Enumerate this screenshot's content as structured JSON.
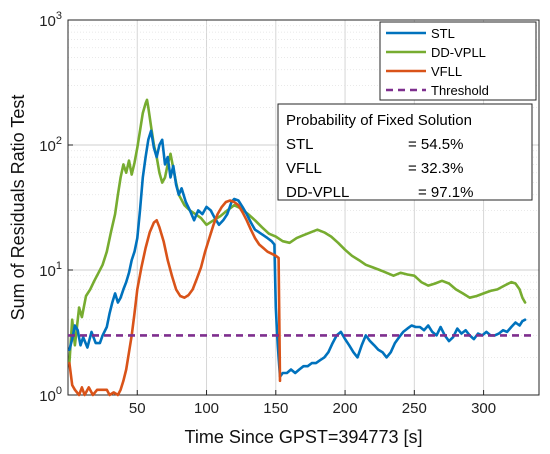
{
  "chart_data": {
    "type": "line",
    "xlabel": "Time Since GPST=394773 [s]",
    "ylabel": "Sum of Residuals Ratio Test",
    "xlim": [
      0,
      340
    ],
    "ylim": [
      1,
      1000
    ],
    "y_scale": "log",
    "grid": true,
    "x_ticks": [
      50,
      100,
      150,
      200,
      250,
      300
    ],
    "x_tick_labels": [
      "50",
      "100",
      "150",
      "200",
      "250",
      "300"
    ],
    "y_ticks": [
      1,
      10,
      100,
      1000
    ],
    "y_tick_labels": [
      {
        "base": "10",
        "exp": "0"
      },
      {
        "base": "10",
        "exp": "1"
      },
      {
        "base": "10",
        "exp": "2"
      },
      {
        "base": "10",
        "exp": "3"
      }
    ],
    "legend_position": "top-right",
    "legend": [
      {
        "name": "STL",
        "color": "#0072BD",
        "style": "solid"
      },
      {
        "name": "DD-VPLL",
        "color": "#77AC30",
        "style": "solid"
      },
      {
        "name": "VFLL",
        "color": "#D95319",
        "style": "solid"
      },
      {
        "name": "Threshold",
        "color": "#7E2F8E",
        "style": "dashed"
      }
    ],
    "annotation": {
      "title": "Probability of Fixed Solution",
      "rows": [
        {
          "label": "STL",
          "value": "= 54.5%"
        },
        {
          "label": "VFLL",
          "value": "= 32.3%"
        },
        {
          "label": "DD-VPLL",
          "value": "= 97.1%"
        }
      ]
    },
    "series": [
      {
        "name": "DD-VPLL",
        "color": "#77AC30",
        "points": [
          [
            1,
            1.8
          ],
          [
            3,
            4.0
          ],
          [
            5,
            2.5
          ],
          [
            8,
            5.0
          ],
          [
            10,
            4.2
          ],
          [
            13,
            6.2
          ],
          [
            16,
            7.0
          ],
          [
            19,
            8.2
          ],
          [
            22,
            9.5
          ],
          [
            25,
            11.0
          ],
          [
            28,
            14.0
          ],
          [
            31,
            20.0
          ],
          [
            34,
            28.0
          ],
          [
            36,
            40.0
          ],
          [
            38,
            55.0
          ],
          [
            40,
            70.0
          ],
          [
            42,
            60.0
          ],
          [
            44,
            75.0
          ],
          [
            46,
            58.0
          ],
          [
            48,
            72.0
          ],
          [
            50,
            95.0
          ],
          [
            52,
            130.0
          ],
          [
            54,
            180.0
          ],
          [
            56,
            215.0
          ],
          [
            57,
            230.0
          ],
          [
            58,
            200.0
          ],
          [
            60,
            140.0
          ],
          [
            62,
            100.0
          ],
          [
            64,
            80.0
          ],
          [
            66,
            60.0
          ],
          [
            68,
            50.0
          ],
          [
            70,
            55.0
          ],
          [
            72,
            70.0
          ],
          [
            74,
            85.0
          ],
          [
            76,
            65.0
          ],
          [
            78,
            50.0
          ],
          [
            80,
            40.0
          ],
          [
            84,
            33.0
          ],
          [
            88,
            30.0
          ],
          [
            92,
            28.0
          ],
          [
            96,
            26.0
          ],
          [
            100,
            23.0
          ],
          [
            105,
            25.0
          ],
          [
            110,
            27.0
          ],
          [
            115,
            30.0
          ],
          [
            120,
            33.0
          ],
          [
            125,
            31.0
          ],
          [
            130,
            28.0
          ],
          [
            135,
            25.0
          ],
          [
            140,
            22.0
          ],
          [
            145,
            19.5
          ],
          [
            150,
            18.5
          ],
          [
            155,
            17.0
          ],
          [
            160,
            16.5
          ],
          [
            165,
            18.0
          ],
          [
            170,
            19.0
          ],
          [
            175,
            20.0
          ],
          [
            180,
            21.0
          ],
          [
            185,
            20.0
          ],
          [
            190,
            18.5
          ],
          [
            195,
            16.5
          ],
          [
            200,
            14.5
          ],
          [
            205,
            13.0
          ],
          [
            210,
            12.0
          ],
          [
            215,
            11.0
          ],
          [
            220,
            10.5
          ],
          [
            225,
            10.0
          ],
          [
            230,
            9.5
          ],
          [
            235,
            9.0
          ],
          [
            240,
            9.5
          ],
          [
            245,
            9.2
          ],
          [
            250,
            9.0
          ],
          [
            255,
            8.0
          ],
          [
            260,
            7.5
          ],
          [
            265,
            7.8
          ],
          [
            270,
            8.2
          ],
          [
            275,
            7.8
          ],
          [
            280,
            7.0
          ],
          [
            285,
            6.5
          ],
          [
            290,
            6.0
          ],
          [
            295,
            6.2
          ],
          [
            300,
            6.5
          ],
          [
            305,
            6.8
          ],
          [
            310,
            7.0
          ],
          [
            315,
            7.5
          ],
          [
            320,
            8.0
          ],
          [
            323,
            7.8
          ],
          [
            326,
            7.0
          ],
          [
            328,
            6.0
          ],
          [
            330,
            5.5
          ]
        ]
      },
      {
        "name": "STL",
        "color": "#0072BD",
        "points": [
          [
            1,
            2.3
          ],
          [
            3,
            2.8
          ],
          [
            5,
            3.6
          ],
          [
            7,
            3.3
          ],
          [
            9,
            2.5
          ],
          [
            11,
            2.9
          ],
          [
            14,
            2.4
          ],
          [
            17,
            3.2
          ],
          [
            20,
            2.6
          ],
          [
            23,
            2.6
          ],
          [
            25,
            3.0
          ],
          [
            28,
            3.5
          ],
          [
            30,
            4.5
          ],
          [
            32,
            5.5
          ],
          [
            34,
            6.5
          ],
          [
            36,
            5.5
          ],
          [
            38,
            6.0
          ],
          [
            40,
            7.0
          ],
          [
            42,
            8.0
          ],
          [
            44,
            9.5
          ],
          [
            46,
            12.0
          ],
          [
            48,
            14.0
          ],
          [
            50,
            18.0
          ],
          [
            52,
            30.0
          ],
          [
            54,
            55.0
          ],
          [
            56,
            80.0
          ],
          [
            58,
            110.0
          ],
          [
            60,
            130.0
          ],
          [
            62,
            95.0
          ],
          [
            64,
            80.0
          ],
          [
            66,
            100.0
          ],
          [
            68,
            110.0
          ],
          [
            70,
            70.0
          ],
          [
            72,
            80.0
          ],
          [
            74,
            55.0
          ],
          [
            76,
            68.0
          ],
          [
            78,
            48.0
          ],
          [
            80,
            40.0
          ],
          [
            82,
            45.0
          ],
          [
            85,
            35.0
          ],
          [
            88,
            30.0
          ],
          [
            91,
            25.0
          ],
          [
            94,
            30.0
          ],
          [
            97,
            28.0
          ],
          [
            100,
            32.0
          ],
          [
            103,
            30.0
          ],
          [
            106,
            26.0
          ],
          [
            109,
            23.0
          ],
          [
            112,
            25.0
          ],
          [
            115,
            28.0
          ],
          [
            118,
            35.0
          ],
          [
            120,
            37.0
          ],
          [
            123,
            36.0
          ],
          [
            126,
            32.0
          ],
          [
            129,
            28.0
          ],
          [
            132,
            24.0
          ],
          [
            135,
            21.0
          ],
          [
            138,
            20.0
          ],
          [
            141,
            19.0
          ],
          [
            144,
            18.0
          ],
          [
            147,
            17.0
          ],
          [
            149,
            16.0
          ],
          [
            150,
            5.0
          ],
          [
            151,
            3.0
          ],
          [
            152,
            2.0
          ],
          [
            153,
            1.4
          ],
          [
            155,
            1.5
          ],
          [
            158,
            1.5
          ],
          [
            161,
            1.6
          ],
          [
            164,
            1.5
          ],
          [
            167,
            1.6
          ],
          [
            170,
            1.7
          ],
          [
            173,
            1.7
          ],
          [
            176,
            1.8
          ],
          [
            179,
            1.8
          ],
          [
            182,
            1.9
          ],
          [
            185,
            2.0
          ],
          [
            188,
            2.2
          ],
          [
            191,
            2.6
          ],
          [
            194,
            3.0
          ],
          [
            197,
            3.2
          ],
          [
            200,
            2.8
          ],
          [
            203,
            2.5
          ],
          [
            206,
            2.2
          ],
          [
            209,
            2.0
          ],
          [
            212,
            2.5
          ],
          [
            215,
            3.0
          ],
          [
            218,
            2.7
          ],
          [
            221,
            2.5
          ],
          [
            224,
            2.3
          ],
          [
            227,
            2.2
          ],
          [
            230,
            2.0
          ],
          [
            233,
            2.2
          ],
          [
            236,
            2.6
          ],
          [
            239,
            2.9
          ],
          [
            242,
            3.2
          ],
          [
            245,
            3.4
          ],
          [
            248,
            3.6
          ],
          [
            251,
            3.5
          ],
          [
            254,
            3.5
          ],
          [
            257,
            3.3
          ],
          [
            260,
            3.6
          ],
          [
            263,
            3.2
          ],
          [
            266,
            3.0
          ],
          [
            269,
            3.5
          ],
          [
            272,
            3.0
          ],
          [
            275,
            2.7
          ],
          [
            278,
            2.9
          ],
          [
            281,
            3.4
          ],
          [
            284,
            3.1
          ],
          [
            287,
            3.3
          ],
          [
            290,
            3.0
          ],
          [
            293,
            2.8
          ],
          [
            296,
            3.1
          ],
          [
            299,
            3.0
          ],
          [
            302,
            3.2
          ],
          [
            305,
            3.0
          ],
          [
            308,
            3.0
          ],
          [
            311,
            3.1
          ],
          [
            314,
            3.3
          ],
          [
            317,
            3.2
          ],
          [
            320,
            3.5
          ],
          [
            323,
            3.8
          ],
          [
            326,
            3.6
          ],
          [
            328,
            3.9
          ],
          [
            330,
            4.0
          ]
        ]
      },
      {
        "name": "VFLL",
        "color": "#D95319",
        "points": [
          [
            1,
            1.8
          ],
          [
            3,
            1.2
          ],
          [
            5,
            1.1
          ],
          [
            8,
            1.0
          ],
          [
            10,
            1.15
          ],
          [
            12,
            1.0
          ],
          [
            15,
            1.15
          ],
          [
            18,
            1.0
          ],
          [
            21,
            1.1
          ],
          [
            25,
            1.1
          ],
          [
            28,
            1.1
          ],
          [
            30,
            1.0
          ],
          [
            33,
            1.05
          ],
          [
            36,
            1.0
          ],
          [
            38,
            1.1
          ],
          [
            40,
            1.3
          ],
          [
            42,
            1.6
          ],
          [
            44,
            2.2
          ],
          [
            46,
            3.0
          ],
          [
            48,
            4.5
          ],
          [
            50,
            7.0
          ],
          [
            53,
            10.5
          ],
          [
            56,
            15.0
          ],
          [
            59,
            20.0
          ],
          [
            62,
            24.0
          ],
          [
            64,
            25.0
          ],
          [
            66,
            22.0
          ],
          [
            69,
            17.0
          ],
          [
            72,
            12.0
          ],
          [
            75,
            9.0
          ],
          [
            78,
            7.0
          ],
          [
            81,
            6.2
          ],
          [
            84,
            6.0
          ],
          [
            87,
            6.3
          ],
          [
            90,
            7.0
          ],
          [
            93,
            8.5
          ],
          [
            96,
            10.5
          ],
          [
            99,
            14.0
          ],
          [
            102,
            18.0
          ],
          [
            105,
            23.0
          ],
          [
            108,
            28.0
          ],
          [
            111,
            32.0
          ],
          [
            114,
            35.0
          ],
          [
            117,
            36.0
          ],
          [
            120,
            35.0
          ],
          [
            123,
            33.0
          ],
          [
            126,
            29.0
          ],
          [
            129,
            25.0
          ],
          [
            132,
            21.0
          ],
          [
            135,
            18.0
          ],
          [
            138,
            16.0
          ],
          [
            141,
            15.0
          ],
          [
            144,
            14.0
          ],
          [
            147,
            13.5
          ],
          [
            150,
            13.0
          ],
          [
            152,
            12.5
          ],
          [
            153,
            1.3
          ]
        ]
      },
      {
        "name": "Threshold",
        "color": "#7E2F8E",
        "dashed": true,
        "points": [
          [
            0,
            3.0
          ],
          [
            335,
            3.0
          ]
        ]
      }
    ]
  }
}
